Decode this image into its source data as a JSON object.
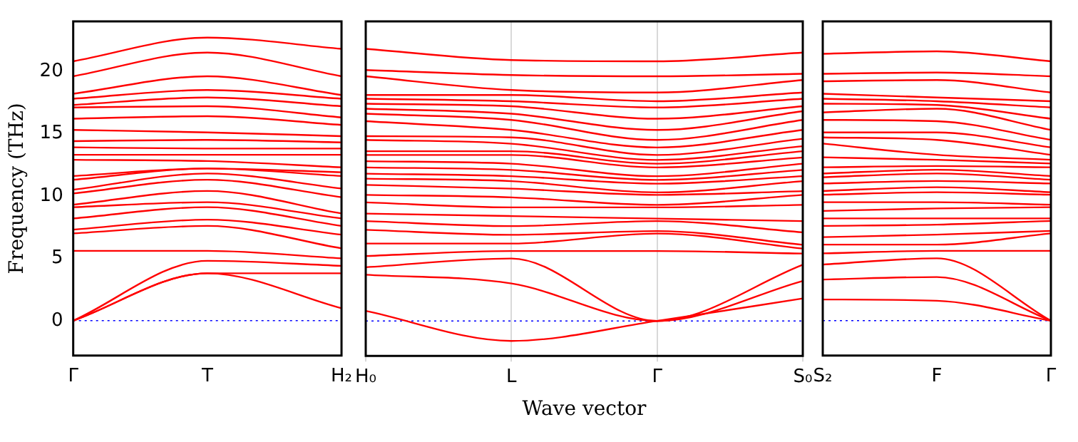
{
  "chart_data": [
    {
      "type": "line",
      "ylabel": "Frequency (THz)",
      "categories": [
        "Γ",
        "T",
        "H₂"
      ],
      "ylim": [
        -2.8,
        24
      ],
      "yticks": [
        0,
        5,
        10,
        15,
        20
      ],
      "ref_lines": [
        {
          "axis": "y",
          "value": 0,
          "color": "#0000ff",
          "line_style": "dotted"
        }
      ],
      "series": [
        {
          "color": "#ff0000",
          "values": [
            0,
            3.8,
            1.0
          ]
        },
        {
          "color": "#ff0000",
          "values": [
            0,
            3.8,
            3.8
          ]
        },
        {
          "color": "#ff0000",
          "values": [
            0,
            4.8,
            4.4
          ]
        },
        {
          "color": "#ff0000",
          "values": [
            5.6,
            5.6,
            5.0
          ]
        },
        {
          "color": "#ff0000",
          "values": [
            7.0,
            7.6,
            5.8
          ]
        },
        {
          "color": "#ff0000",
          "values": [
            7.3,
            8.1,
            6.9
          ]
        },
        {
          "color": "#ff0000",
          "values": [
            8.2,
            9.1,
            7.6
          ]
        },
        {
          "color": "#ff0000",
          "values": [
            9.1,
            9.5,
            8.2
          ]
        },
        {
          "color": "#ff0000",
          "values": [
            9.3,
            10.4,
            8.6
          ]
        },
        {
          "color": "#ff0000",
          "values": [
            10.2,
            11.3,
            9.9
          ]
        },
        {
          "color": "#ff0000",
          "values": [
            10.5,
            11.8,
            10.6
          ]
        },
        {
          "color": "#ff0000",
          "values": [
            11.3,
            12.2,
            11.6
          ]
        },
        {
          "color": "#ff0000",
          "values": [
            11.6,
            12.2,
            11.9
          ]
        },
        {
          "color": "#ff0000",
          "values": [
            12.9,
            12.8,
            12.3
          ]
        },
        {
          "color": "#ff0000",
          "values": [
            13.3,
            13.3,
            13.3
          ]
        },
        {
          "color": "#ff0000",
          "values": [
            13.9,
            13.8,
            13.8
          ]
        },
        {
          "color": "#ff0000",
          "values": [
            14.4,
            14.5,
            14.3
          ]
        },
        {
          "color": "#ff0000",
          "values": [
            15.3,
            15.1,
            14.8
          ]
        },
        {
          "color": "#ff0000",
          "values": [
            16.2,
            16.4,
            15.7
          ]
        },
        {
          "color": "#ff0000",
          "values": [
            17.1,
            17.2,
            16.3
          ]
        },
        {
          "color": "#ff0000",
          "values": [
            17.3,
            17.9,
            17.2
          ]
        },
        {
          "color": "#ff0000",
          "values": [
            17.8,
            18.5,
            17.8
          ]
        },
        {
          "color": "#ff0000",
          "values": [
            18.2,
            19.6,
            18.1
          ]
        },
        {
          "color": "#ff0000",
          "values": [
            19.6,
            21.5,
            19.6
          ]
        },
        {
          "color": "#ff0000",
          "values": [
            20.8,
            22.7,
            21.8
          ]
        }
      ]
    },
    {
      "type": "line",
      "xlabel": "Wave vector",
      "categories": [
        "H₀",
        "L",
        "Γ",
        "S₀"
      ],
      "ylim": [
        -2.8,
        24
      ],
      "yticks": [
        0,
        5,
        10,
        15,
        20
      ],
      "tick_labels": "x",
      "grid": "x",
      "ref_lines": [
        {
          "axis": "y",
          "value": 0,
          "color": "#0000ff",
          "line_style": "dotted"
        }
      ],
      "series": [
        {
          "color": "#ff0000",
          "values": [
            0.8,
            -1.6,
            0,
            1.8
          ]
        },
        {
          "color": "#ff0000",
          "values": [
            3.7,
            3.0,
            0,
            3.2
          ]
        },
        {
          "color": "#ff0000",
          "values": [
            4.3,
            5.0,
            0,
            4.5
          ]
        },
        {
          "color": "#ff0000",
          "values": [
            5.2,
            5.6,
            5.6,
            5.4
          ]
        },
        {
          "color": "#ff0000",
          "values": [
            6.2,
            6.2,
            7.0,
            5.8
          ]
        },
        {
          "color": "#ff0000",
          "values": [
            7.3,
            6.9,
            7.2,
            6.1
          ]
        },
        {
          "color": "#ff0000",
          "values": [
            8.0,
            7.6,
            8.0,
            7.1
          ]
        },
        {
          "color": "#ff0000",
          "values": [
            8.6,
            8.4,
            8.2,
            8.0
          ]
        },
        {
          "color": "#ff0000",
          "values": [
            9.5,
            9.1,
            9.1,
            9.3
          ]
        },
        {
          "color": "#ff0000",
          "values": [
            10.1,
            9.9,
            9.3,
            10.1
          ]
        },
        {
          "color": "#ff0000",
          "values": [
            10.9,
            10.6,
            10.1,
            10.4
          ]
        },
        {
          "color": "#ff0000",
          "values": [
            11.4,
            11.2,
            10.3,
            11.2
          ]
        },
        {
          "color": "#ff0000",
          "values": [
            11.8,
            11.6,
            11.0,
            11.6
          ]
        },
        {
          "color": "#ff0000",
          "values": [
            12.3,
            12.1,
            11.3,
            12.1
          ]
        },
        {
          "color": "#ff0000",
          "values": [
            12.8,
            12.6,
            11.6,
            12.6
          ]
        },
        {
          "color": "#ff0000",
          "values": [
            13.3,
            13.3,
            12.3,
            13.1
          ]
        },
        {
          "color": "#ff0000",
          "values": [
            13.6,
            13.6,
            12.6,
            13.6
          ]
        },
        {
          "color": "#ff0000",
          "values": [
            14.5,
            14.2,
            12.9,
            14.0
          ]
        },
        {
          "color": "#ff0000",
          "values": [
            14.8,
            14.7,
            13.3,
            14.6
          ]
        },
        {
          "color": "#ff0000",
          "values": [
            16.0,
            15.3,
            13.9,
            15.3
          ]
        },
        {
          "color": "#ff0000",
          "values": [
            16.6,
            16.1,
            14.5,
            16.1
          ]
        },
        {
          "color": "#ff0000",
          "values": [
            17.0,
            16.6,
            15.3,
            16.8
          ]
        },
        {
          "color": "#ff0000",
          "values": [
            17.4,
            17.2,
            16.2,
            17.2
          ]
        },
        {
          "color": "#ff0000",
          "values": [
            17.8,
            17.6,
            17.1,
            17.8
          ]
        },
        {
          "color": "#ff0000",
          "values": [
            18.1,
            18.1,
            17.6,
            18.3
          ]
        },
        {
          "color": "#ff0000",
          "values": [
            19.6,
            18.5,
            18.3,
            19.3
          ]
        },
        {
          "color": "#ff0000",
          "values": [
            20.1,
            19.7,
            19.6,
            19.8
          ]
        },
        {
          "color": "#ff0000",
          "values": [
            21.8,
            20.9,
            20.8,
            21.5
          ]
        }
      ]
    },
    {
      "type": "line",
      "categories": [
        "S₂",
        "F",
        "Γ"
      ],
      "ylim": [
        -2.8,
        24
      ],
      "yticks": [
        0,
        5,
        10,
        15,
        20
      ],
      "tick_labels": "x",
      "ref_lines": [
        {
          "axis": "y",
          "value": 0,
          "color": "#0000ff",
          "line_style": "dotted"
        }
      ],
      "series": [
        {
          "color": "#ff0000",
          "values": [
            1.7,
            1.6,
            0
          ]
        },
        {
          "color": "#ff0000",
          "values": [
            3.3,
            3.5,
            0
          ]
        },
        {
          "color": "#ff0000",
          "values": [
            4.5,
            5.0,
            0
          ]
        },
        {
          "color": "#ff0000",
          "values": [
            5.4,
            5.6,
            5.6
          ]
        },
        {
          "color": "#ff0000",
          "values": [
            6.1,
            6.1,
            7.0
          ]
        },
        {
          "color": "#ff0000",
          "values": [
            6.7,
            6.9,
            7.2
          ]
        },
        {
          "color": "#ff0000",
          "values": [
            7.6,
            7.7,
            8.0
          ]
        },
        {
          "color": "#ff0000",
          "values": [
            8.2,
            8.2,
            8.2
          ]
        },
        {
          "color": "#ff0000",
          "values": [
            8.8,
            9.0,
            9.1
          ]
        },
        {
          "color": "#ff0000",
          "values": [
            9.5,
            9.5,
            9.3
          ]
        },
        {
          "color": "#ff0000",
          "values": [
            10.1,
            10.3,
            10.1
          ]
        },
        {
          "color": "#ff0000",
          "values": [
            10.4,
            10.7,
            10.3
          ]
        },
        {
          "color": "#ff0000",
          "values": [
            11.0,
            11.2,
            11.0
          ]
        },
        {
          "color": "#ff0000",
          "values": [
            11.5,
            11.8,
            11.3
          ]
        },
        {
          "color": "#ff0000",
          "values": [
            11.8,
            12.1,
            11.6
          ]
        },
        {
          "color": "#ff0000",
          "values": [
            12.3,
            12.4,
            12.3
          ]
        },
        {
          "color": "#ff0000",
          "values": [
            13.1,
            12.9,
            12.6
          ]
        },
        {
          "color": "#ff0000",
          "values": [
            14.2,
            13.3,
            12.9
          ]
        },
        {
          "color": "#ff0000",
          "values": [
            14.7,
            14.5,
            13.3
          ]
        },
        {
          "color": "#ff0000",
          "values": [
            15.1,
            15.1,
            13.9
          ]
        },
        {
          "color": "#ff0000",
          "values": [
            16.1,
            16.0,
            14.5
          ]
        },
        {
          "color": "#ff0000",
          "values": [
            16.7,
            17.0,
            15.3
          ]
        },
        {
          "color": "#ff0000",
          "values": [
            17.4,
            17.3,
            16.2
          ]
        },
        {
          "color": "#ff0000",
          "values": [
            17.8,
            17.6,
            17.1
          ]
        },
        {
          "color": "#ff0000",
          "values": [
            18.2,
            17.9,
            17.6
          ]
        },
        {
          "color": "#ff0000",
          "values": [
            19.2,
            19.3,
            18.3
          ]
        },
        {
          "color": "#ff0000",
          "values": [
            19.8,
            19.9,
            19.6
          ]
        },
        {
          "color": "#ff0000",
          "values": [
            21.4,
            21.6,
            20.8
          ]
        }
      ]
    }
  ]
}
